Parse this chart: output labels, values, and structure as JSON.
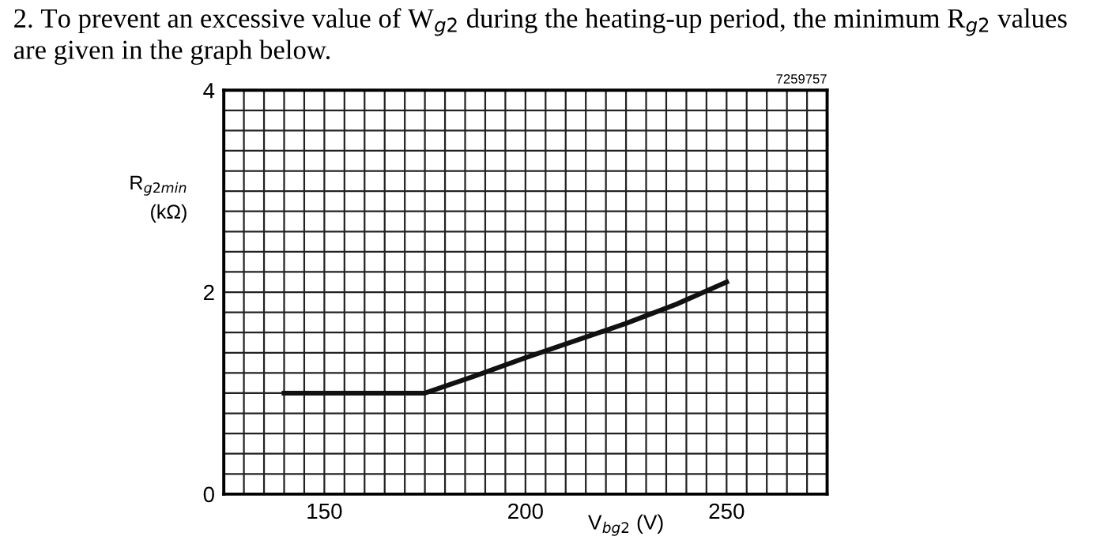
{
  "chart_data": {
    "type": "line",
    "title": "2. To prevent an excessive value of W$_{g2}$ during the heating-up period, the minimum R$_{g2}$ values are given in the graph below.",
    "xlabel": "V$_{bg2}$ (V)",
    "ylabel": "R$_{g2min}$\n(kΩ)",
    "annotations": [
      "7259757"
    ],
    "x": [
      140,
      175,
      187.5,
      200,
      212.5,
      225,
      237.5,
      250
    ],
    "series": [
      {
        "color": "#111111",
        "values": [
          1.0,
          1.0,
          1.17,
          1.35,
          1.52,
          1.69,
          1.88,
          2.1
        ]
      }
    ],
    "xlim": [
      125,
      275
    ],
    "xticks": [
      {
        "value": 125,
        "label": null
      },
      {
        "value": 130,
        "label": null
      },
      {
        "value": 135,
        "label": null
      },
      {
        "value": 140,
        "label": null
      },
      {
        "value": 145,
        "label": null
      },
      150,
      {
        "value": 155,
        "label": null
      },
      {
        "value": 160,
        "label": null
      },
      {
        "value": 165,
        "label": null
      },
      {
        "value": 170,
        "label": null
      },
      {
        "value": 175,
        "label": null
      },
      {
        "value": 180,
        "label": null
      },
      {
        "value": 185,
        "label": null
      },
      {
        "value": 190,
        "label": null
      },
      {
        "value": 195,
        "label": null
      },
      200,
      {
        "value": 205,
        "label": null
      },
      {
        "value": 210,
        "label": null
      },
      {
        "value": 215,
        "label": null
      },
      {
        "value": 220,
        "label": null
      },
      {
        "value": 225,
        "label": null
      },
      {
        "value": 230,
        "label": null
      },
      {
        "value": 235,
        "label": null
      },
      {
        "value": 240,
        "label": null
      },
      {
        "value": 245,
        "label": null
      },
      250,
      {
        "value": 255,
        "label": null
      },
      {
        "value": 260,
        "label": null
      },
      {
        "value": 265,
        "label": null
      },
      {
        "value": 270,
        "label": null
      },
      {
        "value": 275,
        "label": null
      }
    ],
    "ylim": [
      0,
      4
    ],
    "yticks": [
      0,
      {
        "value": 0.2,
        "label": null
      },
      {
        "value": 0.4,
        "label": null
      },
      {
        "value": 0.6,
        "label": null
      },
      {
        "value": 0.8,
        "label": null
      },
      {
        "value": 1,
        "label": null
      },
      {
        "value": 1.2,
        "label": null
      },
      {
        "value": 1.4,
        "label": null
      },
      {
        "value": 1.6,
        "label": null
      },
      {
        "value": 1.8,
        "label": null
      },
      2,
      {
        "value": 2.2,
        "label": null
      },
      {
        "value": 2.4,
        "label": null
      },
      {
        "value": 2.6,
        "label": null
      },
      {
        "value": 2.8,
        "label": null
      },
      {
        "value": 3,
        "label": null
      },
      {
        "value": 3.2,
        "label": null
      },
      {
        "value": 3.4,
        "label": null
      },
      {
        "value": 3.6,
        "label": null
      },
      {
        "value": 3.8,
        "label": null
      },
      4
    ],
    "grid": true,
    "marker": "none",
    "line_style": "solid"
  }
}
